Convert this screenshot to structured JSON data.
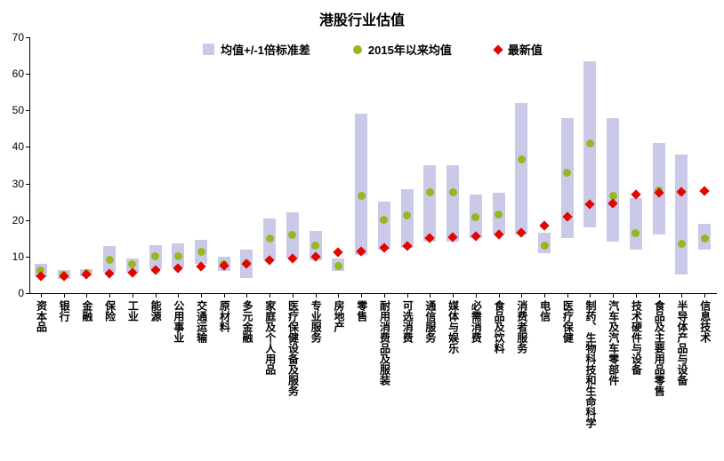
{
  "colors": {
    "band": "#cacae8",
    "mean": "#96b71e",
    "latest": "#e10600",
    "axis": "#000000"
  },
  "chart_data": {
    "type": "range-band-scatter",
    "title": "港股行业估值",
    "xlabel": "",
    "ylabel": "",
    "ylim": [
      0,
      70
    ],
    "yticks": [
      0,
      10,
      20,
      30,
      40,
      50,
      60,
      70
    ],
    "grid": false,
    "legend_position": "top-center",
    "categories": [
      "资本品",
      "银行",
      "金融",
      "保险",
      "工业",
      "能源",
      "公用事业",
      "交通运输",
      "原材料",
      "多元金融",
      "家庭及个人用品",
      "医疗保健设备及服务",
      "专业服务",
      "房地产",
      "零售",
      "耐用消费品及服装",
      "可选消费",
      "通信服务",
      "媒体与娱乐",
      "必需消费",
      "食品及饮料",
      "消费者服务",
      "电信",
      "医疗保健",
      "制药、生物科技和生命科学",
      "汽车及汽车零部件",
      "技术硬件与设备",
      "食品及主要用品零售",
      "半导体产品与设备",
      "信息技术"
    ],
    "band": {
      "name": "均值+/-1倍标准差",
      "low": [
        4.4,
        4,
        4.5,
        5.5,
        5.5,
        6.5,
        7,
        8,
        6,
        4.2,
        9,
        9.5,
        9,
        6,
        10.5,
        12,
        12.5,
        14,
        14,
        15,
        16,
        16,
        11,
        15,
        18,
        14,
        12,
        16,
        5,
        12
      ],
      "high": [
        8,
        6.2,
        6.5,
        13,
        9.5,
        13.2,
        13.5,
        14.5,
        10,
        12,
        20.5,
        22,
        17,
        9.5,
        49,
        25,
        28.5,
        35,
        35,
        27,
        27.5,
        52,
        16.5,
        48,
        63.5,
        48,
        26,
        41,
        38,
        19
      ]
    },
    "series": [
      {
        "name": "2015年以来均值",
        "marker": "circle",
        "values": [
          6.3,
          5,
          5.5,
          9.2,
          8,
          10,
          10.2,
          11.2,
          8,
          8.2,
          15,
          15.8,
          13,
          7.5,
          26.5,
          20,
          21.2,
          27.5,
          27.5,
          20.8,
          21.5,
          36.5,
          13,
          33,
          41,
          26.5,
          16.5,
          28,
          13.5,
          15
        ]
      },
      {
        "name": "最新值",
        "marker": "diamond",
        "values": [
          4.5,
          4.7,
          5,
          5.3,
          5.5,
          6.3,
          6.8,
          7.3,
          7.5,
          8,
          9,
          9.5,
          10,
          11.3,
          11.5,
          12.5,
          13,
          15,
          15.3,
          15.5,
          16,
          16.5,
          18.5,
          21,
          24.3,
          24.5,
          27,
          27.5,
          27.8,
          28
        ]
      }
    ]
  }
}
